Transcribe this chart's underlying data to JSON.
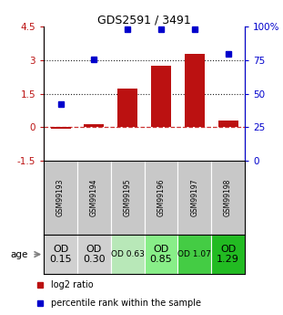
{
  "title": "GDS2591 / 3491",
  "samples": [
    "GSM99193",
    "GSM99194",
    "GSM99195",
    "GSM99196",
    "GSM99197",
    "GSM99198"
  ],
  "log2_ratio": [
    -0.05,
    0.15,
    1.75,
    2.75,
    3.3,
    0.3
  ],
  "percentile_rank": [
    42,
    76,
    98,
    98,
    98,
    80
  ],
  "bar_color": "#bb1111",
  "dot_color": "#0000cc",
  "ylim_left": [
    -1.5,
    4.5
  ],
  "ylim_right": [
    0,
    100
  ],
  "yticks_left": [
    -1.5,
    0,
    1.5,
    3,
    4.5
  ],
  "yticks_right": [
    0,
    25,
    50,
    75,
    100
  ],
  "yticklabels_left": [
    "-1.5",
    "0",
    "1.5",
    "3",
    "4.5"
  ],
  "yticklabels_right": [
    "0",
    "25",
    "50",
    "75",
    "100%"
  ],
  "hline_y": [
    0,
    1.5,
    3.0
  ],
  "hline_styles": [
    "dashed",
    "dotted",
    "dotted"
  ],
  "hline_colors": [
    "#cc3333",
    "#222222",
    "#222222"
  ],
  "age_labels": [
    "OD\n0.15",
    "OD\n0.30",
    "OD 0.63",
    "OD\n0.85",
    "OD 1.07",
    "OD\n1.29"
  ],
  "age_label_fontsize": [
    8,
    8,
    6.5,
    8,
    6.5,
    8
  ],
  "age_colors": [
    "#d0d0d0",
    "#d0d0d0",
    "#b8e8b8",
    "#88ee88",
    "#44cc44",
    "#22bb22"
  ],
  "gsm_bg_color": "#c8c8c8",
  "legend_red_label": "log2 ratio",
  "legend_blue_label": "percentile rank within the sample"
}
